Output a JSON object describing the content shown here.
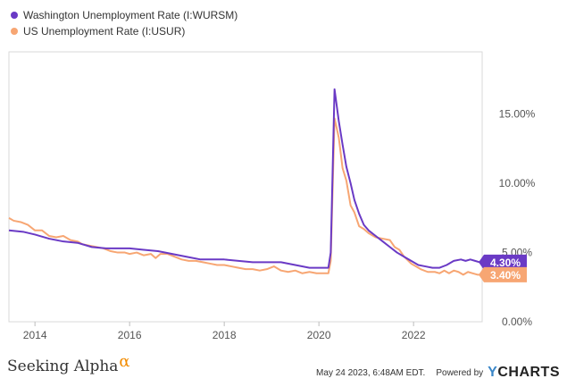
{
  "legend": [
    {
      "label": "Washington Unemployment Rate (I:WURSM)",
      "color": "#6a3ac5"
    },
    {
      "label": "US Unemployment Rate (I:USUR)",
      "color": "#f7a673"
    }
  ],
  "footer": {
    "brand": "Seeking Alpha",
    "brand_symbol": "α",
    "timestamp": "May 24 2023, 6:48AM EDT.",
    "powered_by": "Powered by",
    "ycharts_y": "Y",
    "ycharts_rest": "CHARTS"
  },
  "chart_data": {
    "type": "line",
    "xlim": [
      2013.45,
      2023.45
    ],
    "ylim": [
      0,
      19.5
    ],
    "x_ticks": [
      2014,
      2016,
      2018,
      2020,
      2022
    ],
    "x_tick_labels": [
      "2014",
      "2016",
      "2018",
      "2020",
      "2022"
    ],
    "y_ticks": [
      0,
      5,
      10,
      15
    ],
    "y_tick_labels": [
      "0.00%",
      "5.00%",
      "10.00%",
      "15.00%"
    ],
    "grid": false,
    "legend_position": "top-left",
    "series": [
      {
        "name": "Washington Unemployment Rate (I:WURSM)",
        "color": "#6a3ac5",
        "end_label": "4.30%",
        "points": [
          [
            2013.45,
            6.6
          ],
          [
            2013.75,
            6.5
          ],
          [
            2014.0,
            6.3
          ],
          [
            2014.3,
            6.0
          ],
          [
            2014.6,
            5.8
          ],
          [
            2014.9,
            5.7
          ],
          [
            2015.2,
            5.4
          ],
          [
            2015.5,
            5.3
          ],
          [
            2015.8,
            5.3
          ],
          [
            2016.0,
            5.3
          ],
          [
            2016.3,
            5.2
          ],
          [
            2016.6,
            5.1
          ],
          [
            2016.9,
            4.9
          ],
          [
            2017.2,
            4.7
          ],
          [
            2017.5,
            4.5
          ],
          [
            2017.8,
            4.5
          ],
          [
            2018.0,
            4.5
          ],
          [
            2018.3,
            4.4
          ],
          [
            2018.6,
            4.3
          ],
          [
            2018.9,
            4.3
          ],
          [
            2019.2,
            4.3
          ],
          [
            2019.5,
            4.1
          ],
          [
            2019.8,
            3.9
          ],
          [
            2020.0,
            3.9
          ],
          [
            2020.2,
            3.9
          ],
          [
            2020.25,
            5.0
          ],
          [
            2020.33,
            16.8
          ],
          [
            2020.42,
            14.5
          ],
          [
            2020.5,
            12.8
          ],
          [
            2020.58,
            11.2
          ],
          [
            2020.67,
            10.0
          ],
          [
            2020.75,
            8.8
          ],
          [
            2020.85,
            7.8
          ],
          [
            2020.95,
            7.0
          ],
          [
            2021.05,
            6.6
          ],
          [
            2021.2,
            6.2
          ],
          [
            2021.35,
            5.8
          ],
          [
            2021.5,
            5.4
          ],
          [
            2021.65,
            5.0
          ],
          [
            2021.8,
            4.7
          ],
          [
            2021.95,
            4.4
          ],
          [
            2022.1,
            4.1
          ],
          [
            2022.25,
            4.0
          ],
          [
            2022.4,
            3.9
          ],
          [
            2022.55,
            3.9
          ],
          [
            2022.7,
            4.1
          ],
          [
            2022.85,
            4.4
          ],
          [
            2023.0,
            4.5
          ],
          [
            2023.1,
            4.4
          ],
          [
            2023.2,
            4.5
          ],
          [
            2023.3,
            4.4
          ],
          [
            2023.4,
            4.3
          ]
        ]
      },
      {
        "name": "US Unemployment Rate (I:USUR)",
        "color": "#f7a673",
        "end_label": "3.40%",
        "points": [
          [
            2013.45,
            7.5
          ],
          [
            2013.55,
            7.3
          ],
          [
            2013.7,
            7.2
          ],
          [
            2013.85,
            7.0
          ],
          [
            2014.0,
            6.6
          ],
          [
            2014.15,
            6.6
          ],
          [
            2014.3,
            6.2
          ],
          [
            2014.45,
            6.1
          ],
          [
            2014.6,
            6.2
          ],
          [
            2014.75,
            5.9
          ],
          [
            2014.9,
            5.8
          ],
          [
            2015.0,
            5.6
          ],
          [
            2015.15,
            5.5
          ],
          [
            2015.3,
            5.4
          ],
          [
            2015.45,
            5.3
          ],
          [
            2015.6,
            5.1
          ],
          [
            2015.75,
            5.0
          ],
          [
            2015.9,
            5.0
          ],
          [
            2016.0,
            4.9
          ],
          [
            2016.15,
            5.0
          ],
          [
            2016.3,
            4.8
          ],
          [
            2016.45,
            4.9
          ],
          [
            2016.55,
            4.6
          ],
          [
            2016.65,
            4.9
          ],
          [
            2016.8,
            4.9
          ],
          [
            2016.95,
            4.7
          ],
          [
            2017.1,
            4.5
          ],
          [
            2017.25,
            4.4
          ],
          [
            2017.4,
            4.4
          ],
          [
            2017.55,
            4.3
          ],
          [
            2017.7,
            4.2
          ],
          [
            2017.85,
            4.1
          ],
          [
            2018.0,
            4.1
          ],
          [
            2018.15,
            4.0
          ],
          [
            2018.3,
            3.9
          ],
          [
            2018.45,
            3.8
          ],
          [
            2018.6,
            3.8
          ],
          [
            2018.75,
            3.7
          ],
          [
            2018.9,
            3.8
          ],
          [
            2019.05,
            4.0
          ],
          [
            2019.2,
            3.7
          ],
          [
            2019.35,
            3.6
          ],
          [
            2019.5,
            3.7
          ],
          [
            2019.65,
            3.5
          ],
          [
            2019.8,
            3.6
          ],
          [
            2019.95,
            3.5
          ],
          [
            2020.1,
            3.5
          ],
          [
            2020.2,
            3.5
          ],
          [
            2020.25,
            4.4
          ],
          [
            2020.33,
            14.7
          ],
          [
            2020.42,
            13.3
          ],
          [
            2020.5,
            11.1
          ],
          [
            2020.58,
            10.2
          ],
          [
            2020.67,
            8.4
          ],
          [
            2020.75,
            7.9
          ],
          [
            2020.85,
            6.9
          ],
          [
            2020.95,
            6.7
          ],
          [
            2021.05,
            6.4
          ],
          [
            2021.2,
            6.1
          ],
          [
            2021.35,
            6.0
          ],
          [
            2021.5,
            5.9
          ],
          [
            2021.6,
            5.4
          ],
          [
            2021.7,
            5.2
          ],
          [
            2021.8,
            4.7
          ],
          [
            2021.95,
            4.2
          ],
          [
            2022.05,
            4.0
          ],
          [
            2022.15,
            3.8
          ],
          [
            2022.3,
            3.6
          ],
          [
            2022.45,
            3.6
          ],
          [
            2022.55,
            3.5
          ],
          [
            2022.65,
            3.7
          ],
          [
            2022.75,
            3.5
          ],
          [
            2022.85,
            3.7
          ],
          [
            2022.95,
            3.6
          ],
          [
            2023.05,
            3.4
          ],
          [
            2023.15,
            3.6
          ],
          [
            2023.25,
            3.5
          ],
          [
            2023.35,
            3.4
          ],
          [
            2023.45,
            3.4
          ]
        ]
      }
    ]
  }
}
